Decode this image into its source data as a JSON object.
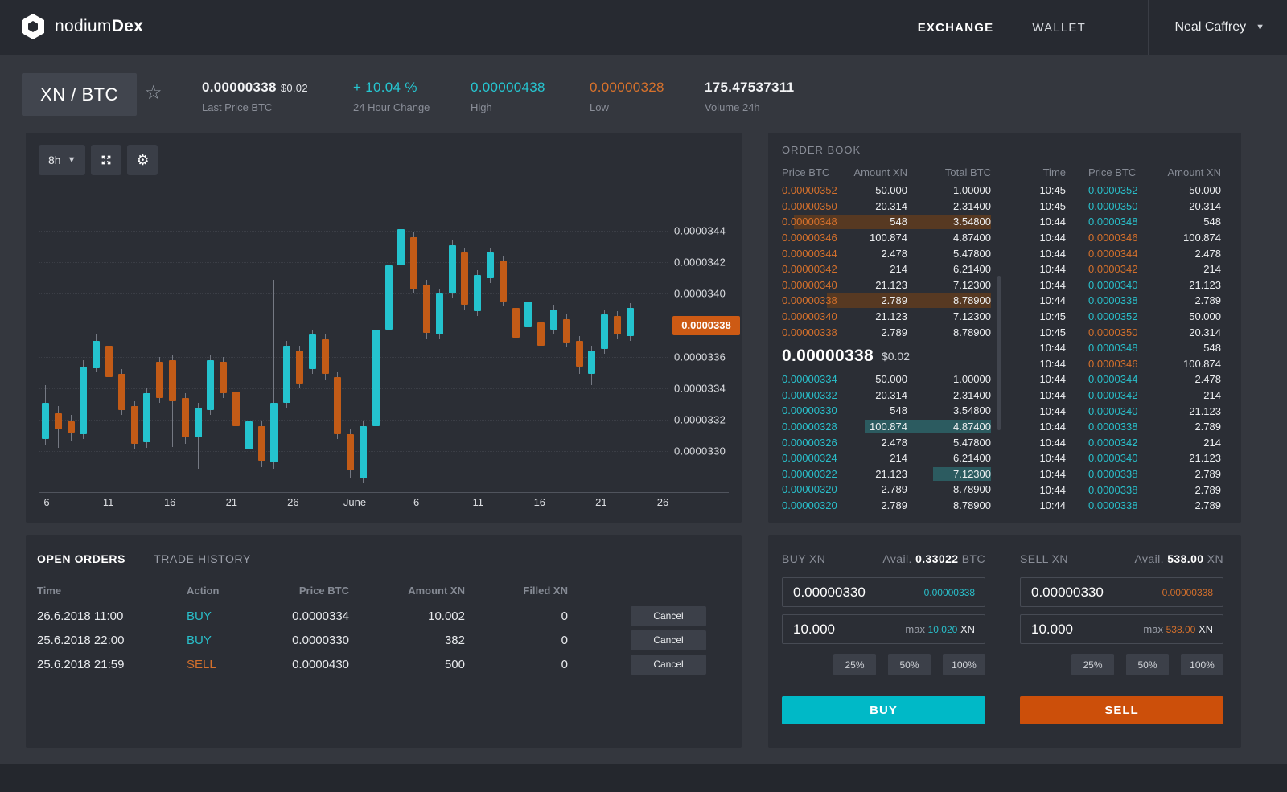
{
  "header": {
    "brand_regular": "nodium",
    "brand_bold": "Dex",
    "nav_exchange": "EXCHANGE",
    "nav_wallet": "WALLET",
    "user_name": "Neal Caffrey"
  },
  "stats": {
    "pair": "XN / BTC",
    "last_price": {
      "value": "0.00000338",
      "usd": "$0.02",
      "label": "Last Price BTC"
    },
    "change": {
      "value": "+ 10.04 %",
      "label": "24 Hour Change"
    },
    "high": {
      "value": "0.00000438",
      "label": "High"
    },
    "low": {
      "value": "0.00000328",
      "label": "Low"
    },
    "volume": {
      "value": "175.47537311",
      "label": "Volume 24h"
    }
  },
  "chart_toolbar": {
    "timeframe": "8h"
  },
  "chart_data": {
    "type": "candlestick",
    "pair": "XN/BTC",
    "timeframe": "8h",
    "value_unit": "1e-7 BTC",
    "y_ticks": [
      "0.0000344",
      "0.0000342",
      "0.0000340",
      "0.0000338",
      "0.0000336",
      "0.0000334",
      "0.0000332",
      "0.0000330"
    ],
    "y_tick_values": [
      344,
      342,
      340,
      338,
      336,
      334,
      332,
      330
    ],
    "x_ticks": [
      "6",
      "11",
      "16",
      "21",
      "26",
      "June",
      "6",
      "11",
      "16",
      "21",
      "26"
    ],
    "current_price": {
      "value": 338,
      "label": "0.0000338"
    },
    "candles": [
      [
        330.8,
        333.1,
        334.2,
        330.4
      ],
      [
        332.4,
        331.4,
        332.9,
        330.2
      ],
      [
        331.9,
        331.2,
        332.3,
        330.7
      ],
      [
        331.1,
        335.4,
        335.8,
        330.8
      ],
      [
        335.3,
        337.0,
        337.4,
        335.0
      ],
      [
        336.7,
        334.7,
        337.0,
        334.4
      ],
      [
        334.9,
        332.6,
        335.2,
        332.3
      ],
      [
        332.9,
        330.5,
        333.2,
        330.1
      ],
      [
        330.6,
        333.7,
        334.0,
        330.2
      ],
      [
        335.7,
        333.4,
        336.0,
        333.1
      ],
      [
        335.8,
        333.2,
        336.1,
        330.3
      ],
      [
        333.4,
        330.9,
        333.7,
        330.5
      ],
      [
        330.9,
        332.8,
        333.1,
        328.9
      ],
      [
        332.6,
        335.8,
        336.1,
        332.3
      ],
      [
        335.7,
        333.7,
        336.0,
        333.4
      ],
      [
        333.8,
        331.6,
        334.1,
        331.3
      ],
      [
        330.1,
        331.9,
        332.2,
        329.7
      ],
      [
        331.6,
        329.4,
        331.9,
        329.0
      ],
      [
        329.3,
        333.1,
        340.9,
        328.9
      ],
      [
        333.1,
        336.7,
        337.0,
        332.8
      ],
      [
        336.4,
        334.3,
        336.7,
        334.0
      ],
      [
        335.2,
        337.4,
        337.7,
        334.9
      ],
      [
        337.1,
        334.9,
        337.4,
        334.5
      ],
      [
        334.7,
        331.1,
        335.0,
        330.8
      ],
      [
        331.1,
        328.8,
        331.4,
        328.3
      ],
      [
        328.3,
        331.6,
        331.9,
        328.0
      ],
      [
        331.6,
        337.7,
        338.0,
        331.3
      ],
      [
        337.7,
        341.8,
        342.2,
        337.4
      ],
      [
        341.8,
        344.1,
        344.6,
        341.5
      ],
      [
        343.6,
        340.3,
        343.9,
        340.0
      ],
      [
        340.6,
        337.5,
        340.9,
        337.1
      ],
      [
        337.4,
        340.0,
        340.3,
        337.1
      ],
      [
        340.0,
        343.1,
        343.4,
        339.7
      ],
      [
        342.6,
        339.3,
        342.9,
        339.0
      ],
      [
        338.9,
        341.2,
        341.5,
        338.6
      ],
      [
        341.0,
        342.6,
        342.9,
        340.7
      ],
      [
        342.1,
        339.5,
        342.4,
        339.2
      ],
      [
        339.1,
        337.2,
        339.5,
        336.9
      ],
      [
        337.9,
        339.5,
        339.8,
        337.6
      ],
      [
        338.2,
        336.7,
        338.5,
        336.4
      ],
      [
        337.7,
        339.0,
        339.3,
        337.4
      ],
      [
        338.4,
        336.9,
        338.7,
        336.6
      ],
      [
        337.0,
        335.4,
        337.3,
        334.9
      ],
      [
        334.9,
        336.4,
        336.7,
        334.2
      ],
      [
        336.5,
        338.7,
        339.0,
        336.2
      ],
      [
        338.6,
        337.4,
        338.9,
        337.1
      ],
      [
        337.3,
        339.1,
        339.4,
        337.0
      ]
    ]
  },
  "order_book": {
    "title": "ORDER BOOK",
    "columns_left": [
      "Price BTC",
      "Amount XN",
      "Total BTC"
    ],
    "columns_right": [
      "Time",
      "Price BTC",
      "Amount XN"
    ],
    "sells": [
      {
        "price": "0.00000352",
        "amount": "50.000",
        "total": "1.00000",
        "depth": 0
      },
      {
        "price": "0.00000350",
        "amount": "20.314",
        "total": "2.31400",
        "depth": 0
      },
      {
        "price": "0.00000348",
        "amount": "548",
        "total": "3.54800",
        "depth": 245
      },
      {
        "price": "0.00000346",
        "amount": "100.874",
        "total": "4.87400",
        "depth": 0
      },
      {
        "price": "0.00000344",
        "amount": "2.478",
        "total": "5.47800",
        "depth": 0
      },
      {
        "price": "0.00000342",
        "amount": "214",
        "total": "6.21400",
        "depth": 0
      },
      {
        "price": "0.00000340",
        "amount": "21.123",
        "total": "7.12300",
        "depth": 0
      },
      {
        "price": "0.00000338",
        "amount": "2.789",
        "total": "8.78900",
        "depth": 204
      },
      {
        "price": "0.00000340",
        "amount": "21.123",
        "total": "7.12300",
        "depth": 0
      },
      {
        "price": "0.00000338",
        "amount": "2.789",
        "total": "8.78900",
        "depth": 0
      }
    ],
    "mid_price": {
      "value": "0.00000338",
      "usd": "$0.02"
    },
    "buys": [
      {
        "price": "0.00000334",
        "amount": "50.000",
        "total": "1.00000",
        "depth": 0
      },
      {
        "price": "0.00000332",
        "amount": "20.314",
        "total": "2.31400",
        "depth": 0
      },
      {
        "price": "0.00000330",
        "amount": "548",
        "total": "3.54800",
        "depth": 0
      },
      {
        "price": "0.00000328",
        "amount": "100.874",
        "total": "4.87400",
        "depth": 157
      },
      {
        "price": "0.00000326",
        "amount": "2.478",
        "total": "5.47800",
        "depth": 0
      },
      {
        "price": "0.00000324",
        "amount": "214",
        "total": "6.21400",
        "depth": 0
      },
      {
        "price": "0.00000322",
        "amount": "21.123",
        "total": "7.12300",
        "depth": 72
      },
      {
        "price": "0.00000320",
        "amount": "2.789",
        "total": "8.78900",
        "depth": 0
      },
      {
        "price": "0.00000320",
        "amount": "2.789",
        "total": "8.78900",
        "depth": 0
      }
    ],
    "trades": [
      {
        "time": "10:45",
        "price": "0.0000352",
        "amount": "50.000",
        "side": "buy"
      },
      {
        "time": "10:45",
        "price": "0.0000350",
        "amount": "20.314",
        "side": "buy"
      },
      {
        "time": "10:44",
        "price": "0.0000348",
        "amount": "548",
        "side": "buy"
      },
      {
        "time": "10:44",
        "price": "0.0000346",
        "amount": "100.874",
        "side": "sell"
      },
      {
        "time": "10:44",
        "price": "0.0000344",
        "amount": "2.478",
        "side": "sell"
      },
      {
        "time": "10:44",
        "price": "0.0000342",
        "amount": "214",
        "side": "sell"
      },
      {
        "time": "10:44",
        "price": "0.0000340",
        "amount": "21.123",
        "side": "buy"
      },
      {
        "time": "10:44",
        "price": "0.0000338",
        "amount": "2.789",
        "side": "buy"
      },
      {
        "time": "10:45",
        "price": "0.0000352",
        "amount": "50.000",
        "side": "buy"
      },
      {
        "time": "10:45",
        "price": "0.0000350",
        "amount": "20.314",
        "side": "sell"
      },
      {
        "time": "10:44",
        "price": "0.0000348",
        "amount": "548",
        "side": "buy"
      },
      {
        "time": "10:44",
        "price": "0.0000346",
        "amount": "100.874",
        "side": "sell"
      },
      {
        "time": "10:44",
        "price": "0.0000344",
        "amount": "2.478",
        "side": "buy"
      },
      {
        "time": "10:44",
        "price": "0.0000342",
        "amount": "214",
        "side": "buy"
      },
      {
        "time": "10:44",
        "price": "0.0000340",
        "amount": "21.123",
        "side": "buy"
      },
      {
        "time": "10:44",
        "price": "0.0000338",
        "amount": "2.789",
        "side": "buy"
      },
      {
        "time": "10:44",
        "price": "0.0000342",
        "amount": "214",
        "side": "buy"
      },
      {
        "time": "10:44",
        "price": "0.0000340",
        "amount": "21.123",
        "side": "buy"
      },
      {
        "time": "10:44",
        "price": "0.0000338",
        "amount": "2.789",
        "side": "buy"
      },
      {
        "time": "10:44",
        "price": "0.0000338",
        "amount": "2.789",
        "side": "buy"
      },
      {
        "time": "10:44",
        "price": "0.0000338",
        "amount": "2.789",
        "side": "buy"
      }
    ]
  },
  "open_orders": {
    "tab_open": "OPEN ORDERS",
    "tab_history": "TRADE HISTORY",
    "columns": [
      "Time",
      "Action",
      "Price BTC",
      "Amount XN",
      "Filled XN"
    ],
    "cancel_label": "Cancel",
    "rows": [
      {
        "time": "26.6.2018 11:00",
        "action": "BUY",
        "side": "buy",
        "price": "0.0000334",
        "amount": "10.002",
        "filled": "0"
      },
      {
        "time": "25.6.2018 22:00",
        "action": "BUY",
        "side": "buy",
        "price": "0.0000330",
        "amount": "382",
        "filled": "0"
      },
      {
        "time": "25.6.2018 21:59",
        "action": "SELL",
        "side": "sell",
        "price": "0.0000430",
        "amount": "500",
        "filled": "0"
      }
    ]
  },
  "trade": {
    "buy": {
      "title": "BUY XN",
      "avail_label": "Avail.",
      "avail_value": "0.33022",
      "avail_unit": "BTC",
      "price": "0.00000330",
      "price_link": "0.00000338",
      "amount": "10.000",
      "max_label": "max",
      "max_value": "10.020",
      "max_unit": "XN",
      "percents": [
        "25%",
        "50%",
        "100%"
      ],
      "submit": "BUY"
    },
    "sell": {
      "title": "SELL XN",
      "avail_label": "Avail.",
      "avail_value": "538.00",
      "avail_unit": "XN",
      "price": "0.00000330",
      "price_link": "0.00000338",
      "amount": "10.000",
      "max_label": "max",
      "max_value": "538.00",
      "max_unit": "XN",
      "percents": [
        "25%",
        "50%",
        "100%"
      ],
      "submit": "SELL"
    }
  },
  "colors": {
    "teal": "#26c6d1",
    "orange": "#d8722c",
    "candle_up": "#24c3ce",
    "candle_down": "#c25b17",
    "buy_button": "#00b9c7",
    "sell_button": "#cc4f0a",
    "price_tag": "#cd5a14"
  }
}
